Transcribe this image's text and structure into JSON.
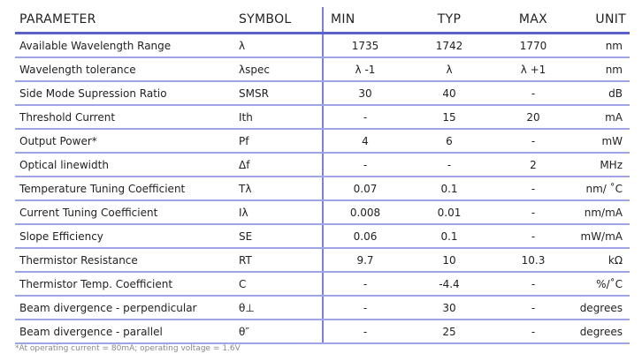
{
  "headers": {
    "parameter": "PARAMETER",
    "symbol": "SYMBOL",
    "min": "MIN",
    "typ": "TYP",
    "max": "MAX",
    "unit": "UNIT"
  },
  "rows": [
    {
      "parameter": "Available Wavelength Range",
      "symbol": "λ",
      "min": "1735",
      "typ": "1742",
      "max": "1770",
      "unit": "nm"
    },
    {
      "parameter": "Wavelength tolerance",
      "symbol": "λspec",
      "min": "λ -1",
      "typ": "λ",
      "max": "λ +1",
      "unit": "nm"
    },
    {
      "parameter": "Side Mode Supression Ratio",
      "symbol": "SMSR",
      "min": "30",
      "typ": "40",
      "max": "-",
      "unit": "dB"
    },
    {
      "parameter": "Threshold Current",
      "symbol": "Ith",
      "min": "-",
      "typ": "15",
      "max": "20",
      "unit": "mA"
    },
    {
      "parameter": "Output Power*",
      "symbol": "Pf",
      "min": "4",
      "typ": "6",
      "max": "-",
      "unit": "mW"
    },
    {
      "parameter": "Optical linewidth",
      "symbol": "Δf",
      "min": "-",
      "typ": "-",
      "max": "2",
      "unit": "MHz"
    },
    {
      "parameter": "Temperature Tuning Coefficient",
      "symbol": "Tλ",
      "min": "0.07",
      "typ": "0.1",
      "max": "-",
      "unit": "nm/ ˚C"
    },
    {
      "parameter": "Current Tuning Coefficient",
      "symbol": "Iλ",
      "min": "0.008",
      "typ": "0.01",
      "max": "-",
      "unit": "nm/mA"
    },
    {
      "parameter": "Slope Efficiency",
      "symbol": "SE",
      "min": "0.06",
      "typ": "0.1",
      "max": "-",
      "unit": "mW/mA"
    },
    {
      "parameter": "Thermistor Resistance",
      "symbol": "RT",
      "min": "9.7",
      "typ": "10",
      "max": "10.3",
      "unit": "kΩ"
    },
    {
      "parameter": "Thermistor Temp. Coefficient",
      "symbol": "C",
      "min": "-",
      "typ": "-4.4",
      "max": "-",
      "unit": "%/˚C"
    },
    {
      "parameter": "Beam divergence - perpendicular",
      "symbol": "θ⊥",
      "min": "-",
      "typ": "30",
      "max": "-",
      "unit": "degrees"
    },
    {
      "parameter": "Beam divergence - parallel",
      "symbol": "θ″",
      "min": "-",
      "typ": "25",
      "max": "-",
      "unit": "degrees"
    }
  ],
  "footnote": "*At operating current = 80mA; operating voltage = 1.6V"
}
